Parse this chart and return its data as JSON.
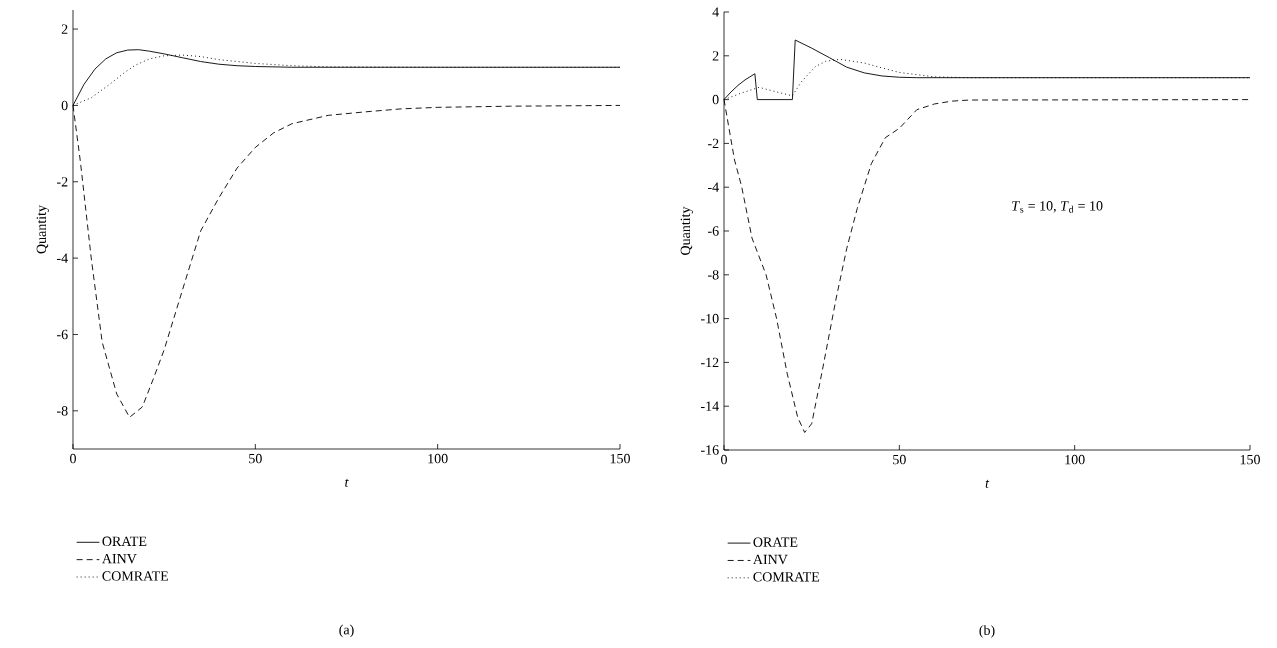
{
  "chart_data": [
    {
      "type": "line",
      "xlabel": "t",
      "ylabel": "Quantity",
      "xlim": [
        0,
        150
      ],
      "ylim": [
        -9,
        2.5
      ],
      "xticks": [
        0,
        50,
        100,
        150
      ],
      "yticks": [
        -8,
        -6,
        -4,
        -2,
        0,
        2
      ],
      "legend": "bottom",
      "annotations": [
        "(a)"
      ],
      "series": [
        {
          "name": "ORATE",
          "color": "#000000",
          "line_style": "solid",
          "x": [
            0,
            3,
            6,
            9,
            12,
            15,
            18,
            21,
            25,
            30,
            35,
            40,
            45,
            50,
            60,
            75,
            100,
            150
          ],
          "values": [
            0,
            0.55,
            0.95,
            1.22,
            1.38,
            1.45,
            1.46,
            1.42,
            1.35,
            1.25,
            1.15,
            1.08,
            1.04,
            1.02,
            1.0,
            1.0,
            1.0,
            1.0
          ]
        },
        {
          "name": "AINV",
          "color": "#000000",
          "line_style": "dashed",
          "x": [
            0,
            2,
            5,
            8,
            12,
            15.5,
            19,
            22,
            25,
            30,
            35,
            40,
            45,
            50,
            55,
            60,
            70,
            80,
            90,
            100,
            120,
            150
          ],
          "values": [
            0,
            -1.45,
            -4.0,
            -6.2,
            -7.56,
            -8.17,
            -7.9,
            -7.17,
            -6.4,
            -4.84,
            -3.29,
            -2.42,
            -1.64,
            -1.1,
            -0.72,
            -0.48,
            -0.26,
            -0.17,
            -0.09,
            -0.05,
            -0.02,
            0
          ]
        },
        {
          "name": "COMRATE",
          "color": "#000000",
          "line_style": "dotted",
          "x": [
            0,
            5,
            10,
            14,
            17,
            21,
            25,
            30,
            35,
            40,
            50,
            60,
            70,
            100,
            150
          ],
          "values": [
            0,
            0.2,
            0.55,
            0.85,
            1.05,
            1.22,
            1.3,
            1.32,
            1.28,
            1.2,
            1.1,
            1.04,
            1.01,
            1.0,
            1.0
          ]
        }
      ]
    },
    {
      "type": "line",
      "xlabel": "t",
      "ylabel": "Quantity",
      "xlim": [
        0,
        150
      ],
      "ylim": [
        -16,
        4
      ],
      "xticks": [
        0,
        50,
        100,
        150
      ],
      "yticks": [
        -16,
        -14,
        -12,
        -10,
        -8,
        -6,
        -4,
        -2,
        0,
        2,
        4
      ],
      "legend": "bottom",
      "annotations": [
        "*T*$_{s}$ = 10,  *T*$_{d}$ = 10",
        "(b)"
      ],
      "series": [
        {
          "name": "ORATE",
          "color": "#000000",
          "line_style": "solid",
          "x": [
            0,
            2,
            4,
            6,
            8.8,
            9.5,
            19.5,
            20.3,
            25,
            30,
            35,
            40,
            45,
            50,
            55,
            150
          ],
          "values": [
            0,
            0.35,
            0.65,
            0.9,
            1.18,
            0,
            0,
            2.72,
            2.35,
            1.92,
            1.48,
            1.22,
            1.08,
            1.02,
            1.0,
            1.0
          ]
        },
        {
          "name": "AINV",
          "color": "#000000",
          "line_style": "dashed",
          "x": [
            0,
            3,
            5,
            8,
            12,
            15,
            18,
            21,
            23,
            25,
            28,
            32,
            35,
            38,
            42,
            46,
            50,
            55,
            60,
            65,
            70,
            150
          ],
          "values": [
            0,
            -2.76,
            -3.95,
            -6.33,
            -8.0,
            -10.0,
            -12.5,
            -14.5,
            -15.2,
            -14.8,
            -12.4,
            -9.06,
            -6.8,
            -4.97,
            -2.93,
            -1.74,
            -1.31,
            -0.46,
            -0.2,
            -0.07,
            -0.02,
            0
          ]
        },
        {
          "name": "COMRATE",
          "color": "#000000",
          "line_style": "dotted",
          "x": [
            0,
            5,
            10,
            15,
            19.5,
            22,
            26,
            29,
            33,
            40,
            45,
            50,
            60,
            70,
            150
          ],
          "values": [
            0,
            0.3,
            0.56,
            0.35,
            0.17,
            0.8,
            1.5,
            1.75,
            1.84,
            1.67,
            1.45,
            1.24,
            1.04,
            1.0,
            1.0
          ]
        }
      ]
    }
  ]
}
